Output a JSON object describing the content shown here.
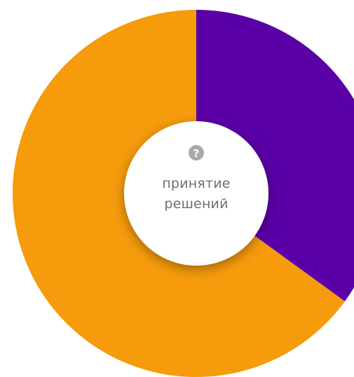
{
  "chart_data": {
    "type": "pie",
    "donut": true,
    "slices": [
      {
        "value": 35,
        "color": "#5a00a6"
      },
      {
        "value": 65,
        "color": "#f59b0c"
      }
    ],
    "center": {
      "icon": "question-mark-icon",
      "label_line1": "принятие",
      "label_line2": "решений"
    },
    "title": "",
    "legend": "none"
  },
  "colors": {
    "center_disc": "#ffffff",
    "icon_bg": "#a9a9a9",
    "label_text": "#6f6f6f"
  }
}
